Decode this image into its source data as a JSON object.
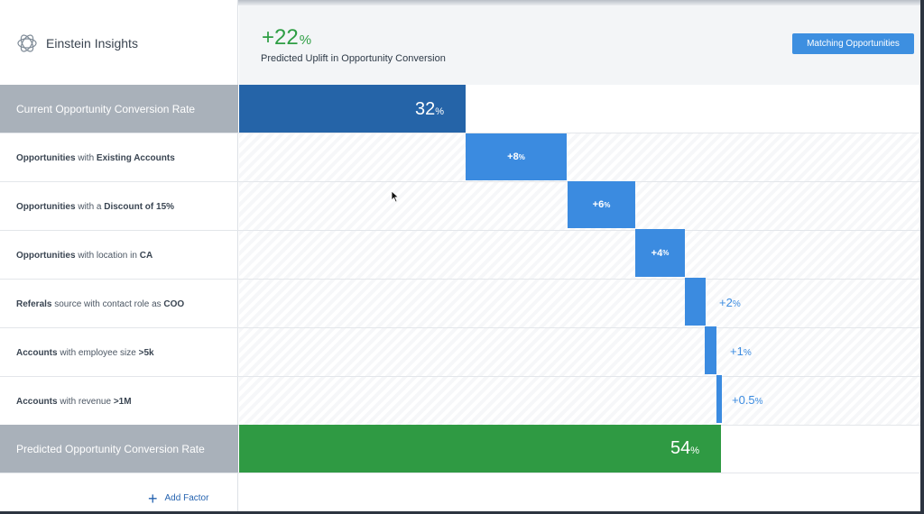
{
  "header": {
    "brand_title": "Einstein Insights",
    "uplift_value": "+22",
    "uplift_unit": "%",
    "uplift_caption": "Predicted Uplift in Opportunity Conversion",
    "matching_button": "Matching Opportunities"
  },
  "colors": {
    "current_bar": "#2564a8",
    "delta_bar": "#3b8be0",
    "predicted_bar": "#2f9a43",
    "uplift_text": "#2e9e44",
    "total_row_label_bg": "#a9b1ba"
  },
  "rows": {
    "current": {
      "label": "Current Opportunity Conversion Rate",
      "value": "32",
      "unit": "%"
    },
    "predicted": {
      "label": "Predicted Opportunity Conversion Rate",
      "value": "54",
      "unit": "%"
    },
    "factors": [
      {
        "pre": "Opportunities",
        "mid": " with ",
        "bold": "Existing Accounts",
        "post": "",
        "value": "+8",
        "unit": "%"
      },
      {
        "pre": "Opportunities",
        "mid": " with a ",
        "bold": "Discount of 15%",
        "post": "",
        "value": "+6",
        "unit": "%"
      },
      {
        "pre": "Opportunities",
        "mid": " with location in ",
        "bold": "CA",
        "post": "",
        "value": "+4",
        "unit": "%"
      },
      {
        "pre": "Referals",
        "mid": " source with contact role as ",
        "bold": "COO",
        "post": "",
        "value": "+2",
        "unit": "%"
      },
      {
        "pre": "Accounts",
        "mid": " with employee size  ",
        "bold": ">5k",
        "post": "",
        "value": "+1",
        "unit": "%"
      },
      {
        "pre": "Accounts",
        "mid": " with revenue ",
        "bold": ">1M",
        "post": "",
        "value": "+0.5",
        "unit": "%"
      }
    ]
  },
  "footer": {
    "add_factor": "Add Factor"
  },
  "icons": {
    "brand": "einstein-logo-icon",
    "add": "plus-icon",
    "cursor": "mouse-pointer-icon"
  }
}
